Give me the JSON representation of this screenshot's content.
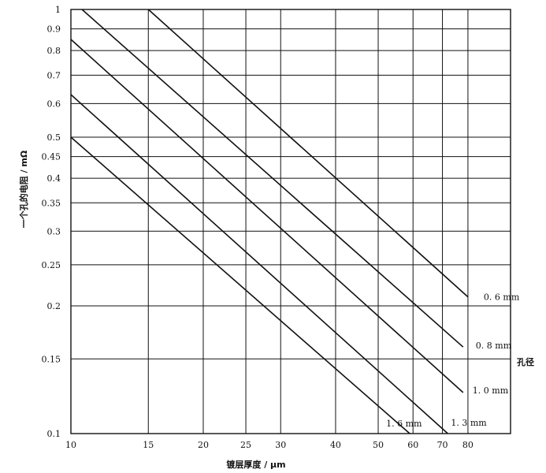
{
  "chart_data": {
    "type": "line",
    "title": "",
    "xlabel": "镀层厚度 / μm",
    "ylabel": "一个孔的电阻 / mΩ",
    "x_scale": "log",
    "y_scale": "log",
    "xlim": [
      10,
      100
    ],
    "ylim": [
      0.1,
      1
    ],
    "grid": true,
    "xticks": [
      10,
      15,
      20,
      25,
      30,
      40,
      50,
      60,
      70,
      80
    ],
    "xtick_labels": [
      "10",
      "15",
      "20",
      "25",
      "30",
      "40",
      "50",
      "60",
      "70",
      "80"
    ],
    "yticks": [
      0.1,
      0.15,
      0.2,
      0.25,
      0.3,
      0.35,
      0.4,
      0.45,
      0.5,
      0.6,
      0.7,
      0.8,
      0.9,
      1
    ],
    "ytick_labels": [
      "0.1",
      "0.15",
      "0.2",
      "0.25",
      "0.3",
      "0.35",
      "0.4",
      "0.45",
      "0.5",
      "0.6",
      "0.7",
      "0.8",
      "0.9",
      "1"
    ],
    "legend_title": "孔径",
    "series": [
      {
        "name": "0.6 mm",
        "label": "0. 6 mm",
        "x": [
          15,
          80
        ],
        "y": [
          1.0,
          0.21
        ]
      },
      {
        "name": "0.8 mm",
        "label": "0. 8 mm",
        "x": [
          10.6,
          78
        ],
        "y": [
          1.0,
          0.16
        ]
      },
      {
        "name": "1.0 mm",
        "label": "1. 0 mm",
        "x": [
          10,
          78
        ],
        "y": [
          0.85,
          0.125
        ]
      },
      {
        "name": "1.3 mm",
        "label": "1. 3 mm",
        "x": [
          10,
          72
        ],
        "y": [
          0.63,
          0.1
        ]
      },
      {
        "name": "1.6 mm",
        "label": "1. 6 mm",
        "x": [
          10,
          59
        ],
        "y": [
          0.5,
          0.1
        ]
      }
    ]
  }
}
